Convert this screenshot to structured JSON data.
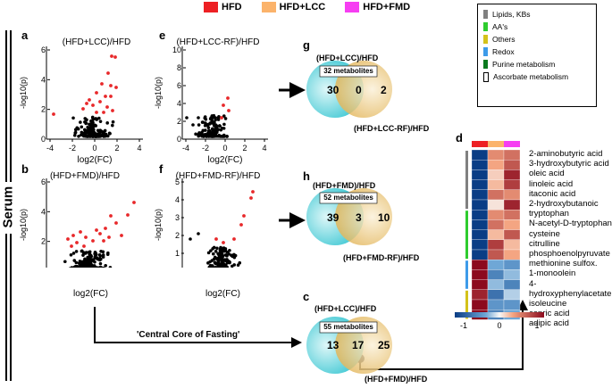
{
  "legend": {
    "items": [
      {
        "label": "HFD",
        "color": "#ed2024"
      },
      {
        "label": "HFD+LCC",
        "color": "#fbb36b"
      },
      {
        "label": "HFD+FMD",
        "color": "#f63ef2"
      }
    ]
  },
  "side_label": "Serum",
  "panels": {
    "a": {
      "letter": "a",
      "title": "(HFD+LCC)/HFD",
      "xlabel": "log2(FC)",
      "ylabel": "-log10(p)",
      "xticks": [
        "-4",
        "-2",
        "0",
        "2",
        "4"
      ],
      "yticks": [
        "0",
        "2",
        "4",
        "6"
      ]
    },
    "b": {
      "letter": "b",
      "title": "(HFD+FMD)/HFD",
      "xlabel": "log2(FC)",
      "ylabel": "-log10(p)",
      "xticks": [
        "-4",
        "-2",
        "0",
        "2",
        "4"
      ],
      "yticks": [
        "0",
        "2",
        "4",
        "6"
      ]
    },
    "e": {
      "letter": "e",
      "title": "(HFD+LCC-RF)/HFD",
      "xlabel": "log2(FC)",
      "ylabel": "-log10(p)",
      "xticks": [
        "-4",
        "-2",
        "0",
        "2",
        "4"
      ],
      "yticks": [
        "0",
        "2",
        "4",
        "6",
        "8",
        "10"
      ]
    },
    "f": {
      "letter": "f",
      "title": "(HFD+FMD-RF)/HFD",
      "xlabel": "log2(FC)",
      "ylabel": "-log10(p)",
      "xticks": [
        "-3",
        "-2",
        "-1",
        "0",
        "1",
        "2",
        "3"
      ],
      "yticks": [
        "0",
        "1",
        "2",
        "3",
        "4",
        "5"
      ]
    }
  },
  "venns": {
    "g": {
      "letter": "g",
      "top": "(HFD+LCC)/HFD",
      "box": "32 metabolites",
      "left": "30",
      "mid": "0",
      "right": "2",
      "bottom": "(HFD+LCC-RF)/HFD"
    },
    "h": {
      "letter": "h",
      "top": "(HFD+FMD)/HFD",
      "box": "52 metabolites",
      "left": "39",
      "mid": "3",
      "right": "10",
      "bottom": "(HFD+FMD-RF)/HFD"
    },
    "c": {
      "letter": "c",
      "top": "(HFD+LCC)/HFD",
      "box": "55 metabolites",
      "left": "13",
      "mid": "17",
      "right": "25",
      "bottom": "(HFD+FMD)/HFD"
    }
  },
  "core_label": "'Central Core of Fasting'",
  "class_legend": {
    "items": [
      {
        "label": "Lipids, KBs",
        "color": "#808080"
      },
      {
        "label": "AA's",
        "color": "#2ecc2e"
      },
      {
        "label": "Others",
        "color": "#d4c21a"
      },
      {
        "label": "Redox",
        "color": "#3d9be9"
      },
      {
        "label": "Purine metabolism",
        "color": "#0a7a1e"
      },
      {
        "label": "Ascorbate metabolism",
        "color": "#ffffff"
      }
    ]
  },
  "heatmap": {
    "letter": "d",
    "scale_ticks": [
      "-1",
      "0",
      "1"
    ],
    "metabolites": [
      "2-aminobutyric acid",
      "3-hydroxybutyric acid",
      "oleic acid",
      "linoleic acid",
      "itaconic acid",
      "2-hydroxybutanoic",
      "tryptophan",
      "N-acetyl-D-tryptophan",
      "cysteine",
      "citrulline",
      "phosphoenolpyruvate",
      "methionine sulfox.",
      "1-monoolein",
      "4-hydroxyphenylacetate",
      "isoleucine",
      "capric acid",
      "adipic acid"
    ],
    "values": [
      [
        -1.0,
        0.5,
        0.6
      ],
      [
        -1.0,
        0.4,
        0.7
      ],
      [
        -1.0,
        0.2,
        0.9
      ],
      [
        -1.0,
        0.3,
        0.8
      ],
      [
        -1.0,
        0.6,
        0.5
      ],
      [
        -1.0,
        0.1,
        0.9
      ],
      [
        -1.0,
        0.5,
        0.6
      ],
      [
        -1.0,
        0.6,
        0.4
      ],
      [
        -1.0,
        0.3,
        0.7
      ],
      [
        -1.0,
        0.8,
        0.3
      ],
      [
        -1.0,
        0.7,
        0.4
      ],
      [
        1.0,
        -0.4,
        -0.5
      ],
      [
        1.0,
        -0.6,
        -0.3
      ],
      [
        1.0,
        -0.3,
        -0.6
      ],
      [
        0.9,
        -0.7,
        -0.2
      ],
      [
        1.0,
        -0.5,
        -0.5
      ],
      [
        1.0,
        -0.6,
        -0.4
      ]
    ],
    "row_classes": [
      "Lipids, KBs",
      "Lipids, KBs",
      "Lipids, KBs",
      "Lipids, KBs",
      "Lipids, KBs",
      "Lipids, KBs",
      "AA's",
      "AA's",
      "AA's",
      "AA's",
      "AA's",
      "Redox",
      "Redox",
      "Redox",
      "Others",
      "Others",
      "Others"
    ]
  }
}
